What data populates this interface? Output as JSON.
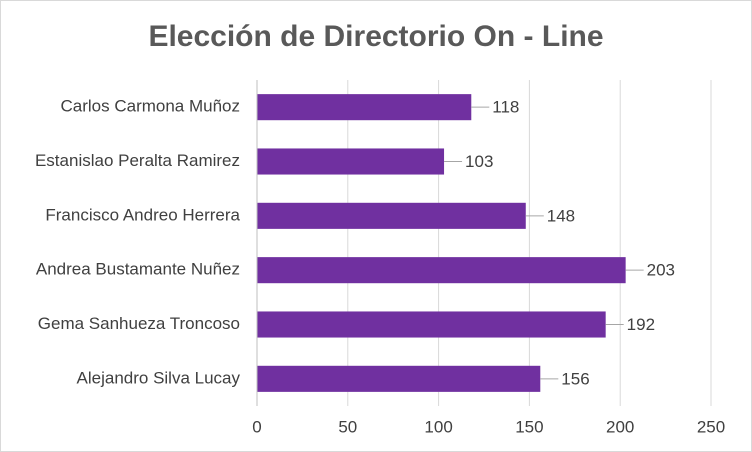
{
  "chart_data": {
    "type": "bar",
    "orientation": "horizontal",
    "title": "Elección de Directorio On - Line",
    "categories": [
      "Carlos Carmona Muñoz",
      "Estanislao Peralta Ramirez",
      "Francisco Andreo Herrera",
      "Andrea Bustamante Nuñez",
      "Gema Sanhueza Troncoso",
      "Alejandro Silva Lucay"
    ],
    "values": [
      118,
      103,
      148,
      203,
      192,
      156
    ],
    "color": "#7030a0",
    "xlim": [
      0,
      250
    ],
    "xticks": [
      0,
      50,
      100,
      150,
      200,
      250
    ],
    "grid": true
  }
}
